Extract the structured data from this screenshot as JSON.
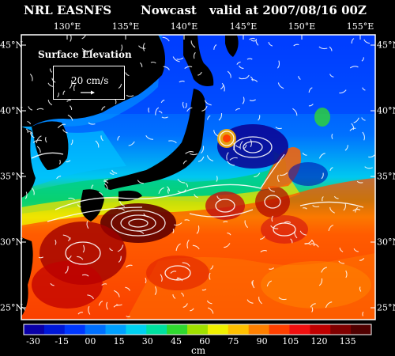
{
  "header": {
    "org": "NRL EASNFS",
    "product": "Nowcast",
    "valid": "valid at 2007/08/16 00Z"
  },
  "map": {
    "lon_ticks": [
      "130°E",
      "135°E",
      "140°E",
      "145°E",
      "150°E",
      "155°E"
    ],
    "lat_ticks": [
      "45°N",
      "40°N",
      "35°N",
      "30°N",
      "25°N"
    ],
    "lon_range": [
      127,
      157
    ],
    "lat_range": [
      24,
      45
    ],
    "field": "sea surface elevation",
    "vector_overlay": "surface currents (white arrows)"
  },
  "inset": {
    "title": "Surface Elevation",
    "reference_vector": "20 cm/s"
  },
  "colorbar": {
    "labels": [
      "-30",
      "-15",
      "00",
      "15",
      "30",
      "45",
      "60",
      "75",
      "90",
      "105",
      "120",
      "135"
    ],
    "unit": "cm",
    "colors": [
      "#0a00a8",
      "#0018d8",
      "#0038ff",
      "#0070ff",
      "#00a0ff",
      "#00d0f0",
      "#00e0a0",
      "#30d830",
      "#a0e000",
      "#f0f000",
      "#ffc000",
      "#ff8000",
      "#ff4000",
      "#f01010",
      "#c00000",
      "#800000",
      "#500000"
    ]
  }
}
